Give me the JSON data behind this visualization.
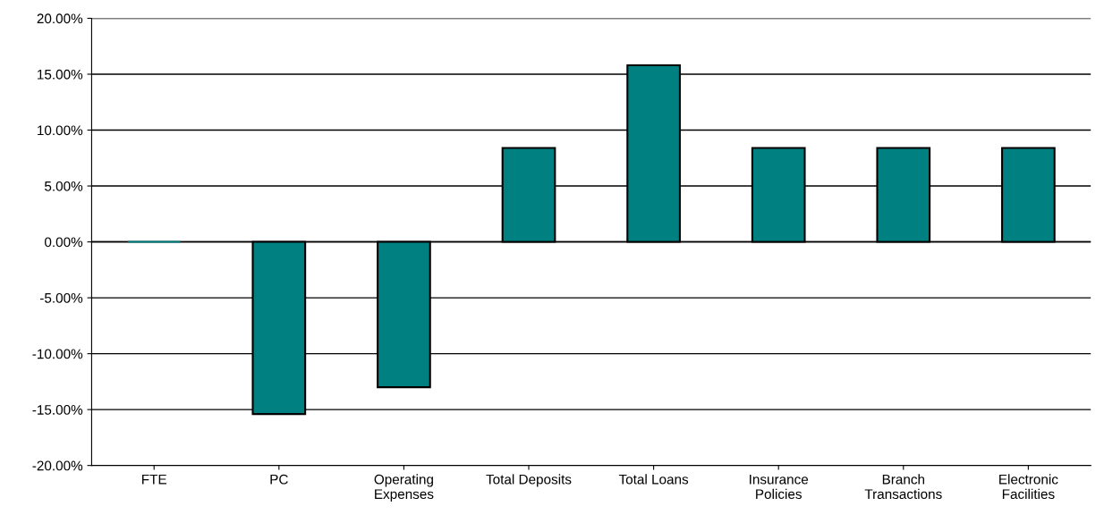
{
  "chart_data": {
    "type": "bar",
    "categories": [
      "FTE",
      "PC",
      "Operating\nExpenses",
      "Total Deposits",
      "Total Loans",
      "Insurance\nPolicies",
      "Branch\nTransactions",
      "Electronic\nFacilities"
    ],
    "values": [
      0,
      -15.4,
      -13.0,
      8.4,
      15.8,
      8.4,
      8.4,
      8.4
    ],
    "color": "#008080",
    "ylim": [
      -20,
      20
    ],
    "yticks": [
      {
        "value": -20,
        "label": "-20.00%"
      },
      {
        "value": -15,
        "label": "-15.00%"
      },
      {
        "value": -10,
        "label": "-10.00%"
      },
      {
        "value": -5,
        "label": "-5.00%"
      },
      {
        "value": 0,
        "label": "0.00%"
      },
      {
        "value": 5,
        "label": "5.00%"
      },
      {
        "value": 10,
        "label": "10.00%"
      },
      {
        "value": 15,
        "label": "15.00%"
      },
      {
        "value": 20,
        "label": "20.00%"
      }
    ],
    "grid": "y"
  }
}
